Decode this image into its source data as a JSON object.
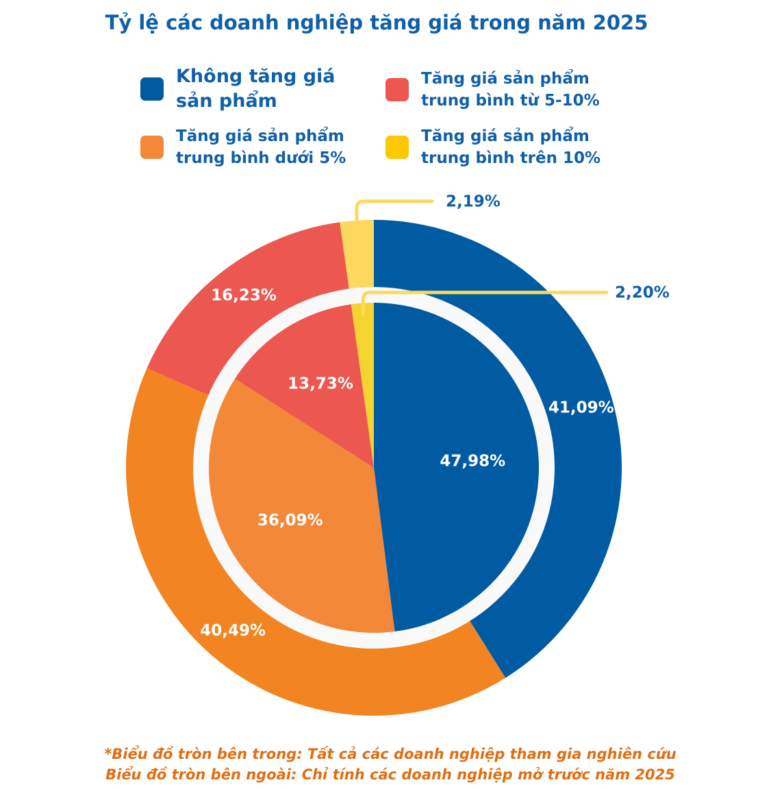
{
  "chart_data": [
    {
      "type": "pie",
      "title": "Tỷ lệ các doanh nghiệp tăng giá trong năm 2025",
      "ring": "outer",
      "note": "Biểu đồ tròn bên ngoài: Chỉ tính các doanh nghiệp mở trước năm 2025",
      "categories": [
        "Không tăng giá sản phẩm",
        "Tăng giá sản phẩm trung bình dưới 5%",
        "Tăng giá sản phẩm trung bình từ 5-10%",
        "Tăng giá sản phẩm trung bình trên 10%"
      ],
      "values": [
        41.09,
        40.49,
        16.23,
        2.19
      ],
      "labels": [
        "41,09%",
        "40,49%",
        "16,23%",
        "2,19%"
      ],
      "colors": [
        "#005ba2",
        "#f28421",
        "#ec5750",
        "#fcd95e"
      ]
    },
    {
      "type": "pie",
      "title": "Tỷ lệ các doanh nghiệp tăng giá trong năm 2025",
      "ring": "inner",
      "note": "*Biểu đồ tròn bên trong: Tất cả các doanh nghiệp tham gia nghiên cứu",
      "categories": [
        "Không tăng giá sản phẩm",
        "Tăng giá sản phẩm trung bình dưới 5%",
        "Tăng giá sản phẩm trung bình từ 5-10%",
        "Tăng giá sản phẩm trung bình trên 10%"
      ],
      "values": [
        47.98,
        36.09,
        13.73,
        2.2
      ],
      "labels": [
        "47,98%",
        "36,09%",
        "13,73%",
        "2,20%"
      ],
      "colors": [
        "#005ba2",
        "#f38839",
        "#ec5750",
        "#f3d431"
      ]
    }
  ],
  "title": "Tỷ lệ các doanh nghiệp tăng giá trong năm 2025",
  "legend": [
    {
      "label": "Không tăng giá\nsản phẩm",
      "color": "#005ba2"
    },
    {
      "label": "Tăng giá sản phẩm\ntrung bình từ 5-10%",
      "color": "#ec5750"
    },
    {
      "label": "Tăng giá sản phẩm\ntrung bình dưới 5%",
      "color": "#f38839"
    },
    {
      "label": "Tăng giá sản phẩm\ntrung bình trên 10%",
      "color": "#fcc800"
    }
  ],
  "colors": {
    "text_blue": "#1060a8",
    "text_orange": "#e06e12",
    "separator_ring": "#f9f9f9",
    "leader_line": "#fcd95e"
  },
  "footnote": {
    "line1": "*Biểu đồ tròn bên trong: Tất cả các doanh nghiệp tham gia nghiên cứu",
    "line2": "Biểu đồ tròn bên ngoài: Chỉ tính các doanh nghiệp mở trước năm 2025"
  }
}
